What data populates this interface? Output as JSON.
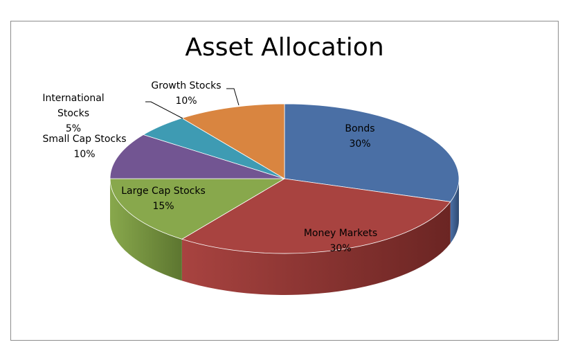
{
  "chart_data": {
    "type": "pie",
    "style": "3d",
    "title": "Asset Allocation",
    "slices": [
      {
        "label": "Bonds",
        "value": 30,
        "value_label": "30%",
        "color": "#4a6fa5",
        "side": "#2f4a72"
      },
      {
        "label": "Money Markets",
        "value": 30,
        "value_label": "30%",
        "color": "#a84340",
        "side": "#6b2523"
      },
      {
        "label": "Large Cap Stocks",
        "value": 15,
        "value_label": "15%",
        "color": "#88a84c",
        "side": "#5d7630"
      },
      {
        "label": "Small Cap Stocks",
        "value": 10,
        "value_label": "10%",
        "color": "#725592",
        "side": "#4c3864"
      },
      {
        "label": "International Stocks",
        "label_lines": [
          "International",
          "Stocks"
        ],
        "value": 5,
        "value_label": "5%",
        "color": "#3e9bb3",
        "side": "#286879"
      },
      {
        "label": "Growth Stocks",
        "value": 10,
        "value_label": "10%",
        "color": "#d98540",
        "side": "#93562a"
      }
    ]
  }
}
